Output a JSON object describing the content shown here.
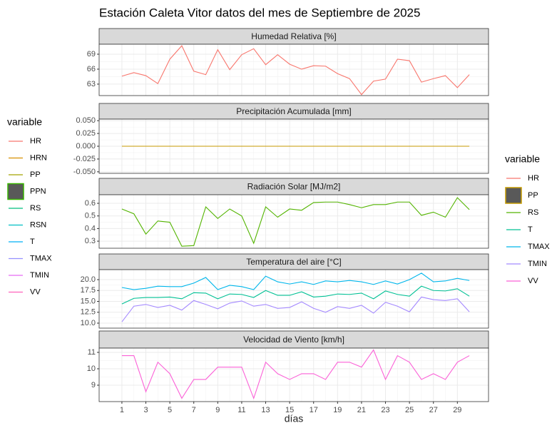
{
  "title": "Estación Caleta Vitor datos del mes de Septiembre de 2025",
  "x_label": "días",
  "legends": [
    {
      "title": "variable",
      "entries": [
        {
          "name": "HR",
          "color": "#F8766D"
        },
        {
          "name": "HRN",
          "color": "#D89000"
        },
        {
          "name": "PP",
          "color": "#A3A500"
        },
        {
          "name": "PPN",
          "color": "#39B600",
          "fill": "#595959"
        },
        {
          "name": "RS",
          "color": "#00BF7D"
        },
        {
          "name": "RSN",
          "color": "#00BFC4"
        },
        {
          "name": "T",
          "color": "#00B0F6"
        },
        {
          "name": "TMAX",
          "color": "#9590FF"
        },
        {
          "name": "TMIN",
          "color": "#E76BF3"
        },
        {
          "name": "VV",
          "color": "#FF62BC"
        }
      ]
    },
    {
      "title": "variable",
      "entries": [
        {
          "name": "HR",
          "color": "#F8766D"
        },
        {
          "name": "PP",
          "color": "#C49A00",
          "fill": "#595959"
        },
        {
          "name": "RS",
          "color": "#53B400"
        },
        {
          "name": "T",
          "color": "#00C094"
        },
        {
          "name": "TMAX",
          "color": "#00B6EB"
        },
        {
          "name": "TMIN",
          "color": "#A58AFF"
        },
        {
          "name": "VV",
          "color": "#FB61D7"
        }
      ]
    }
  ],
  "chart_data": [
    {
      "type": "line",
      "title": "Humedad Relativa [%]",
      "x": [
        1,
        2,
        3,
        4,
        5,
        6,
        7,
        8,
        9,
        10,
        11,
        12,
        13,
        14,
        15,
        16,
        17,
        18,
        19,
        20,
        21,
        22,
        23,
        24,
        25,
        26,
        27,
        28,
        29,
        30
      ],
      "xlim": [
        -0.9,
        31.6
      ],
      "xticks": [
        1,
        3,
        5,
        7,
        9,
        11,
        13,
        15,
        17,
        19,
        21,
        23,
        25,
        27,
        29
      ],
      "ylim": [
        60.7,
        71
      ],
      "yticks": [
        63,
        66,
        69
      ],
      "series": [
        {
          "name": "HR",
          "color": "#F8766D",
          "values": [
            64.6,
            65.3,
            64.7,
            63.1,
            68.0,
            70.7,
            65.6,
            64.9,
            69.9,
            65.9,
            68.9,
            70.1,
            66.9,
            68.9,
            67.0,
            66.0,
            66.7,
            66.6,
            65.1,
            64.1,
            60.9,
            63.6,
            64.0,
            68.0,
            67.7,
            63.4,
            64.1,
            64.7,
            62.3,
            64.9
          ]
        }
      ]
    },
    {
      "type": "line",
      "title": "Precipitación Acumulada [mm]",
      "x": [
        1,
        2,
        3,
        4,
        5,
        6,
        7,
        8,
        9,
        10,
        11,
        12,
        13,
        14,
        15,
        16,
        17,
        18,
        19,
        20,
        21,
        22,
        23,
        24,
        25,
        26,
        27,
        28,
        29,
        30
      ],
      "xlim": [
        -0.9,
        31.6
      ],
      "xticks": [
        1,
        3,
        5,
        7,
        9,
        11,
        13,
        15,
        17,
        19,
        21,
        23,
        25,
        27,
        29
      ],
      "ylim": [
        -0.053,
        0.053
      ],
      "yticks": [
        {
          "value": 0.05,
          "label": "0.050"
        },
        {
          "value": 0.025,
          "label": "0.025"
        },
        {
          "value": 0,
          "label": "0.000"
        },
        {
          "value": -0.025,
          "label": "-0.025"
        },
        {
          "value": -0.05,
          "label": "-0.050"
        }
      ],
      "series": [
        {
          "name": "PP",
          "color": "#C49A00",
          "values": [
            0,
            0,
            0,
            0,
            0,
            0,
            0,
            0,
            0,
            0,
            0,
            0,
            0,
            0,
            0,
            0,
            0,
            0,
            0,
            0,
            0,
            0,
            0,
            0,
            0,
            0,
            0,
            0,
            0,
            0
          ]
        }
      ]
    },
    {
      "type": "line",
      "title": "Radiación Solar [MJ/m2]",
      "x": [
        1,
        2,
        3,
        4,
        5,
        6,
        7,
        8,
        9,
        10,
        11,
        12,
        13,
        14,
        15,
        16,
        17,
        18,
        19,
        20,
        21,
        22,
        23,
        24,
        25,
        26,
        27,
        28,
        29,
        30
      ],
      "xlim": [
        -0.9,
        31.6
      ],
      "xticks": [
        1,
        3,
        5,
        7,
        9,
        11,
        13,
        15,
        17,
        19,
        21,
        23,
        25,
        27,
        29
      ],
      "ylim": [
        0.244,
        0.668
      ],
      "yticks": [
        0.3,
        0.4,
        0.5,
        0.6
      ],
      "series": [
        {
          "name": "RS",
          "color": "#53B400",
          "values": [
            0.555,
            0.517,
            0.356,
            0.46,
            0.45,
            0.26,
            0.265,
            0.572,
            0.48,
            0.555,
            0.5,
            0.283,
            0.572,
            0.49,
            0.555,
            0.545,
            0.606,
            0.61,
            0.61,
            0.59,
            0.565,
            0.59,
            0.59,
            0.61,
            0.61,
            0.505,
            0.53,
            0.49,
            0.645,
            0.55
          ]
        }
      ]
    },
    {
      "type": "line",
      "title": "Temperatura del aire [°C]",
      "x": [
        1,
        2,
        3,
        4,
        5,
        6,
        7,
        8,
        9,
        10,
        11,
        12,
        13,
        14,
        15,
        16,
        17,
        18,
        19,
        20,
        21,
        22,
        23,
        24,
        25,
        26,
        27,
        28,
        29,
        30
      ],
      "xlim": [
        -0.9,
        31.6
      ],
      "xticks": [
        1,
        3,
        5,
        7,
        9,
        11,
        13,
        15,
        17,
        19,
        21,
        23,
        25,
        27,
        29
      ],
      "ylim": [
        8.85,
        22.3
      ],
      "yticks": [
        {
          "value": 10,
          "label": "10.0"
        },
        12.5,
        {
          "value": 15,
          "label": "15.0"
        },
        17.5,
        {
          "value": 20,
          "label": "20.0"
        }
      ],
      "series": [
        {
          "name": "T",
          "color": "#00C094",
          "values": [
            14.4,
            15.7,
            15.9,
            15.9,
            16.0,
            15.6,
            17.0,
            16.9,
            15.6,
            16.7,
            16.6,
            15.9,
            17.5,
            16.4,
            16.4,
            17.2,
            16.0,
            16.2,
            16.7,
            16.6,
            16.9,
            15.6,
            17.4,
            16.6,
            16.2,
            18.5,
            17.5,
            17.4,
            17.9,
            16.2
          ]
        },
        {
          "name": "TMAX",
          "color": "#00B6EB",
          "values": [
            18.2,
            17.7,
            18.0,
            18.5,
            18.4,
            18.4,
            19.2,
            20.5,
            17.7,
            18.7,
            18.4,
            17.7,
            20.8,
            19.5,
            19.0,
            19.5,
            18.9,
            19.7,
            19.5,
            19.8,
            19.5,
            18.9,
            19.7,
            19.0,
            20.0,
            21.5,
            19.5,
            19.7,
            20.3,
            19.8
          ]
        },
        {
          "name": "TMIN",
          "color": "#A58AFF",
          "values": [
            10.3,
            13.9,
            14.3,
            13.6,
            14.1,
            13.0,
            15.2,
            14.3,
            13.3,
            14.6,
            15.1,
            13.9,
            14.3,
            13.4,
            13.6,
            14.9,
            13.4,
            12.5,
            13.8,
            13.4,
            14.1,
            12.3,
            14.8,
            13.9,
            12.6,
            16.0,
            15.4,
            15.2,
            15.6,
            12.6
          ]
        }
      ]
    },
    {
      "type": "line",
      "title": "Velocidad de Viento [km/h]",
      "x": [
        1,
        2,
        3,
        4,
        5,
        6,
        7,
        8,
        9,
        10,
        11,
        12,
        13,
        14,
        15,
        16,
        17,
        18,
        19,
        20,
        21,
        22,
        23,
        24,
        25,
        26,
        27,
        28,
        29,
        30
      ],
      "xlim": [
        -0.9,
        31.6
      ],
      "xticks": [
        1,
        3,
        5,
        7,
        9,
        11,
        13,
        15,
        17,
        19,
        21,
        23,
        25,
        27,
        29
      ],
      "ylim": [
        8.0,
        11.26
      ],
      "yticks": [
        9,
        10,
        11
      ],
      "series": [
        {
          "name": "VV",
          "color": "#FB61D7",
          "values": [
            10.8,
            10.8,
            8.6,
            10.4,
            9.7,
            8.2,
            9.35,
            9.35,
            10.1,
            10.1,
            10.1,
            8.2,
            10.4,
            9.7,
            9.35,
            9.7,
            9.7,
            9.35,
            10.4,
            10.4,
            10.1,
            11.15,
            9.35,
            10.8,
            10.4,
            9.35,
            9.7,
            9.35,
            10.4,
            10.8
          ]
        }
      ]
    }
  ]
}
